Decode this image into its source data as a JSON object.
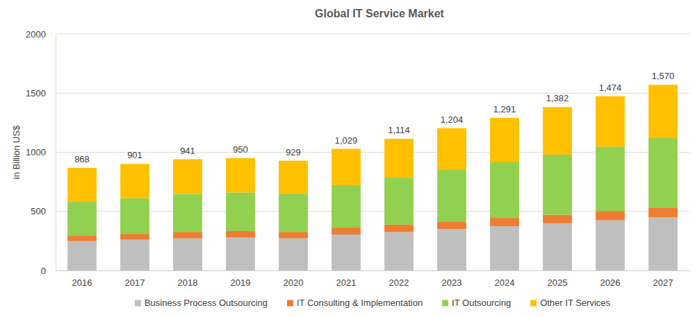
{
  "chart_data": {
    "type": "bar",
    "stacked": true,
    "title": "Global IT Service Market",
    "y_label": "in Billion US$",
    "categories": [
      "2016",
      "2017",
      "2018",
      "2019",
      "2020",
      "2021",
      "2022",
      "2023",
      "2024",
      "2025",
      "2026",
      "2027"
    ],
    "series": [
      {
        "name": "Business Process Outsourcing",
        "color": "#bfbfbf",
        "values": [
          248,
          260,
          272,
          278,
          272,
          305,
          325,
          350,
          375,
          400,
          425,
          450
        ]
      },
      {
        "name": "IT Consulting & Implementation",
        "color": "#ed7d31",
        "values": [
          45,
          50,
          55,
          57,
          55,
          58,
          63,
          65,
          70,
          72,
          78,
          82
        ]
      },
      {
        "name": "IT Outsourcing",
        "color": "#92d050",
        "values": [
          287,
          302,
          321,
          325,
          323,
          359,
          397,
          435,
          470,
          508,
          545,
          588
        ]
      },
      {
        "name": "Other IT Services",
        "color": "#ffc000",
        "values": [
          288,
          289,
          293,
          290,
          279,
          307,
          329,
          354,
          376,
          402,
          426,
          450
        ]
      }
    ],
    "totals": [
      868,
      901,
      941,
      950,
      929,
      1029,
      1114,
      1204,
      1291,
      1382,
      1474,
      1570
    ],
    "totals_labels": [
      "868",
      "901",
      "941",
      "950",
      "929",
      "1,029",
      "1,114",
      "1,204",
      "1,291",
      "1,382",
      "1,474",
      "1,570"
    ],
    "ylim": [
      0,
      2000
    ],
    "yticks": [
      0,
      500,
      1000,
      1500,
      2000
    ],
    "grid": true,
    "legend": "bottom"
  }
}
